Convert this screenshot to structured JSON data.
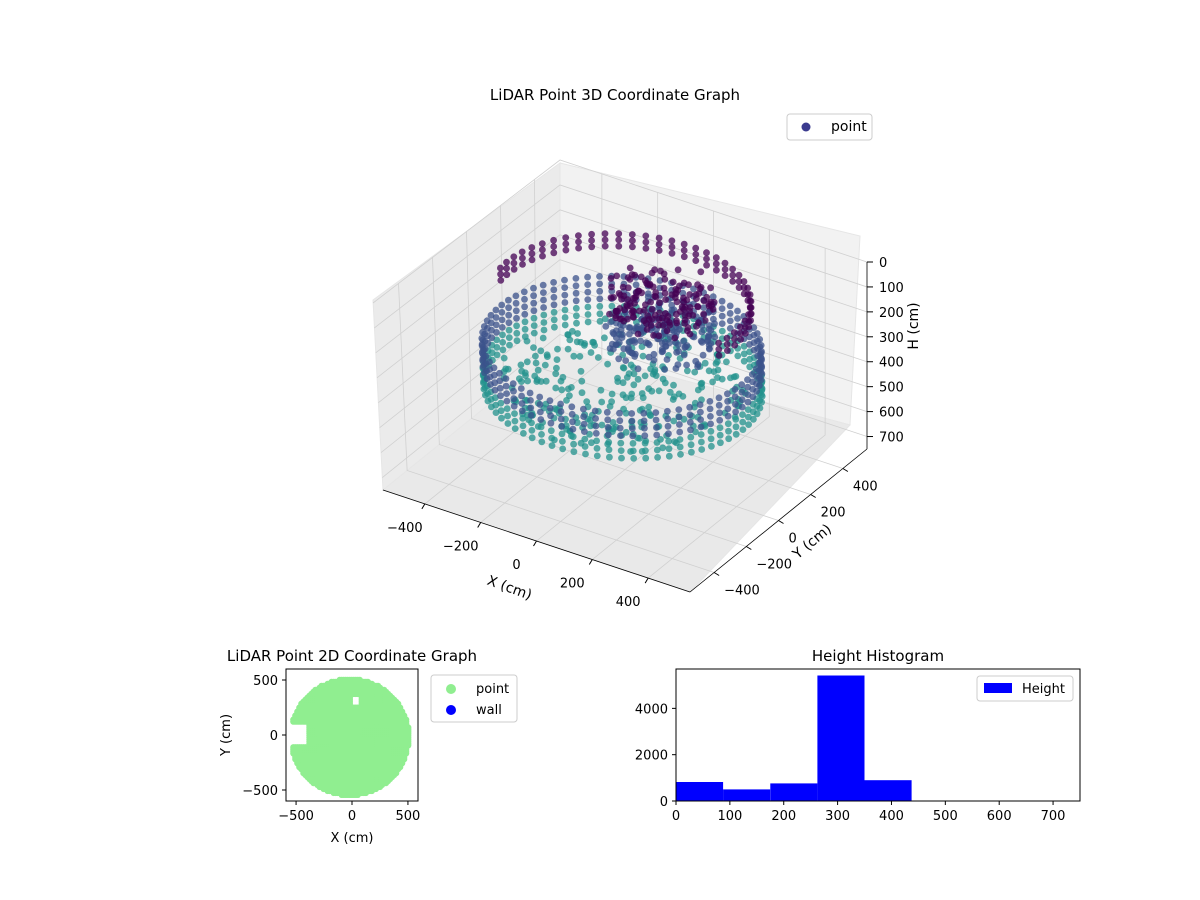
{
  "chart_data": [
    {
      "type": "scatter",
      "dimensions": 3,
      "title": "LiDAR Point 3D Coordinate Graph",
      "xlabel": "X (cm)",
      "ylabel": "Y (cm)",
      "zlabel": "H (cm)",
      "x_ticks": [
        -400,
        -200,
        0,
        200,
        400
      ],
      "y_ticks": [
        -400,
        -200,
        0,
        200,
        400
      ],
      "z_ticks": [
        0,
        100,
        200,
        300,
        400,
        500,
        600,
        700
      ],
      "x_tick_labels": [
        "−400",
        "−200",
        "0",
        "200",
        "400"
      ],
      "y_tick_labels": [
        "−400",
        "−200",
        "0",
        "200",
        "400"
      ],
      "z_tick_labels": [
        "0",
        "100",
        "200",
        "300",
        "400",
        "500",
        "600",
        "700"
      ],
      "xlim": [
        -550,
        550
      ],
      "ylim": [
        -550,
        550
      ],
      "zlim": [
        0,
        750
      ],
      "z_axis_inverted": true,
      "colormap": [
        "#440154",
        "#3b528b",
        "#21918c"
      ],
      "grid": true,
      "legend": {
        "position": "top-right",
        "entries": [
          {
            "label": "point",
            "color": "#3b3b8f"
          }
        ]
      },
      "series": [
        {
          "name": "point",
          "structure": {
            "wall_ring": {
              "radius": 430,
              "z_range": [
                250,
                430
              ]
            },
            "upper_rim": {
              "radius": 400,
              "z_range": [
                60,
                110
              ]
            },
            "central_cluster": {
              "center": [
                50,
                150
              ],
              "z_range": [
                80,
                330
              ]
            }
          }
        }
      ]
    },
    {
      "type": "scatter",
      "title": "LiDAR Point 2D Coordinate Graph",
      "xlabel": "X (cm)",
      "ylabel": "Y (cm)",
      "x_ticks": [
        -500,
        0,
        500
      ],
      "y_ticks": [
        -500,
        0,
        500
      ],
      "x_tick_labels": [
        "−500",
        "0",
        "500"
      ],
      "y_tick_labels": [
        "−500",
        "0",
        "500"
      ],
      "xlim": [
        -590,
        590
      ],
      "ylim": [
        -600,
        600
      ],
      "legend": {
        "position": "outside-right",
        "entries": [
          {
            "label": "point",
            "color": "#90ee90"
          },
          {
            "label": "wall",
            "color": "#0000ff"
          }
        ]
      },
      "series": [
        {
          "name": "point",
          "color": "#90ee90",
          "shape": "filled disc of radius ~530 centered near (-20, -20) with a gap on the left edge near y=0"
        },
        {
          "name": "wall",
          "color": "#0000ff",
          "points": []
        }
      ]
    },
    {
      "type": "bar",
      "subtype": "histogram",
      "title": "Height Histogram",
      "xlabel": "",
      "ylabel": "",
      "bin_edges": [
        0,
        87.5,
        175,
        262.5,
        350,
        437.5,
        525,
        612.5,
        700
      ],
      "values": [
        820,
        500,
        760,
        5420,
        900,
        0,
        0,
        0
      ],
      "color": "#0000ff",
      "x_ticks": [
        0,
        100,
        200,
        300,
        400,
        500,
        600,
        700
      ],
      "y_ticks": [
        0,
        2000,
        4000
      ],
      "x_tick_labels": [
        "0",
        "100",
        "200",
        "300",
        "400",
        "500",
        "600",
        "700"
      ],
      "y_tick_labels": [
        "0",
        "2000",
        "4000"
      ],
      "xlim": [
        0,
        750
      ],
      "ylim": [
        0,
        5700
      ],
      "legend": {
        "position": "top-right",
        "entries": [
          {
            "label": "Height",
            "color": "#0000ff"
          }
        ]
      }
    }
  ]
}
